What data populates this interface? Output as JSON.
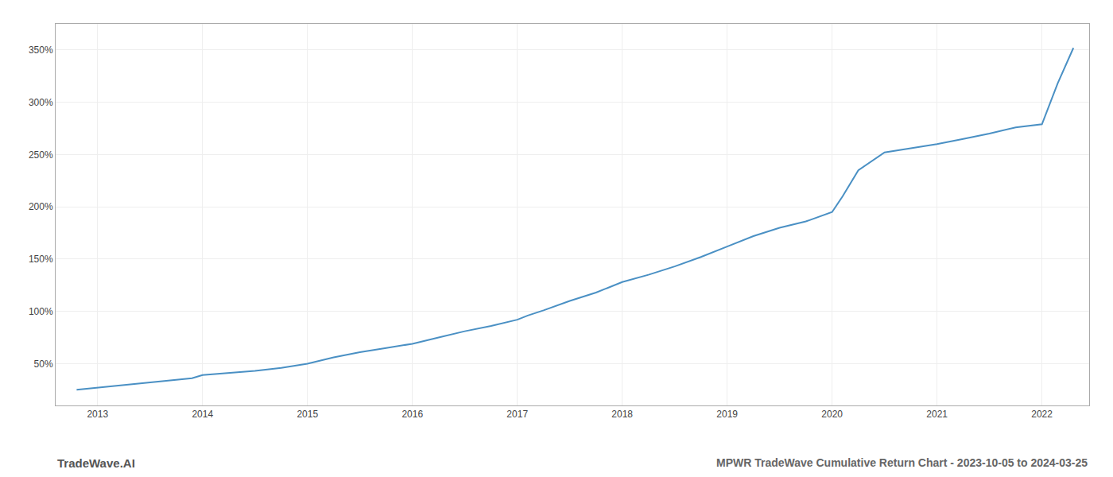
{
  "chart_data": {
    "type": "line",
    "title": "MPWR TradeWave Cumulative Return Chart - 2023-10-05 to 2024-03-25",
    "annotations": [
      "TradeWave.AI"
    ],
    "color": "#4a90c4",
    "grid": true,
    "x": [
      2012.8,
      2013.0,
      2013.3,
      2013.6,
      2013.9,
      2014.0,
      2014.25,
      2014.5,
      2014.75,
      2015.0,
      2015.25,
      2015.5,
      2015.75,
      2016.0,
      2016.25,
      2016.5,
      2016.75,
      2017.0,
      2017.1,
      2017.25,
      2017.5,
      2017.75,
      2018.0,
      2018.25,
      2018.5,
      2018.75,
      2019.0,
      2019.25,
      2019.5,
      2019.75,
      2020.0,
      2020.1,
      2020.25,
      2020.5,
      2020.75,
      2021.0,
      2021.25,
      2021.5,
      2021.75,
      2022.0,
      2022.15,
      2022.3
    ],
    "values": [
      25,
      27,
      30,
      33,
      36,
      39,
      41,
      43,
      46,
      50,
      56,
      61,
      65,
      69,
      75,
      81,
      86,
      92,
      96,
      101,
      110,
      118,
      128,
      135,
      143,
      152,
      162,
      172,
      180,
      186,
      195,
      210,
      235,
      252,
      256,
      260,
      265,
      270,
      276,
      279,
      318,
      352
    ],
    "xlim": [
      2012.6,
      2022.45
    ],
    "xticks": [
      2013,
      2014,
      2015,
      2016,
      2017,
      2018,
      2019,
      2020,
      2021,
      2022
    ],
    "ylim": [
      10,
      375
    ],
    "yticks": [
      {
        "value": 50,
        "label": "50%"
      },
      {
        "value": 100,
        "label": "100%"
      },
      {
        "value": 150,
        "label": "150%"
      },
      {
        "value": 200,
        "label": "200%"
      },
      {
        "value": 250,
        "label": "250%"
      },
      {
        "value": 300,
        "label": "300%"
      },
      {
        "value": 350,
        "label": "350%"
      }
    ]
  }
}
